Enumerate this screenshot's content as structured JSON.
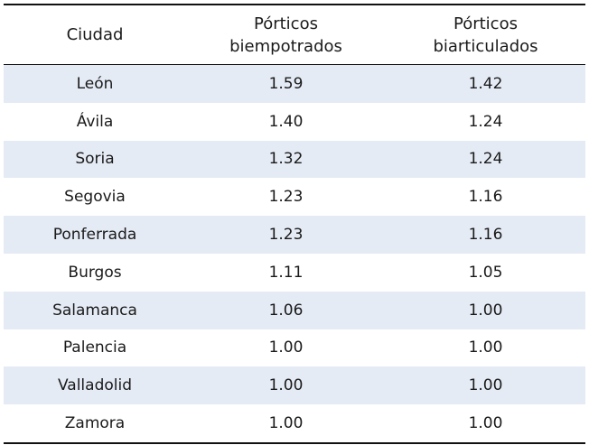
{
  "table": {
    "header": {
      "city": "Ciudad",
      "col2": [
        "Pórticos",
        "biempotrados"
      ],
      "col3": [
        "Pórticos",
        "biarticulados"
      ]
    },
    "rows": [
      {
        "city": "León",
        "biempotrados": "1.59",
        "biarticulados": "1.42"
      },
      {
        "city": "Ávila",
        "biempotrados": "1.40",
        "biarticulados": "1.24"
      },
      {
        "city": "Soria",
        "biempotrados": "1.32",
        "biarticulados": "1.24"
      },
      {
        "city": "Segovia",
        "biempotrados": "1.23",
        "biarticulados": "1.16"
      },
      {
        "city": "Ponferrada",
        "biempotrados": "1.23",
        "biarticulados": "1.16"
      },
      {
        "city": "Burgos",
        "biempotrados": "1.11",
        "biarticulados": "1.05"
      },
      {
        "city": "Salamanca",
        "biempotrados": "1.06",
        "biarticulados": "1.00"
      },
      {
        "city": "Palencia",
        "biempotrados": "1.00",
        "biarticulados": "1.00"
      },
      {
        "city": "Valladolid",
        "biempotrados": "1.00",
        "biarticulados": "1.00"
      },
      {
        "city": "Zamora",
        "biempotrados": "1.00",
        "biarticulados": "1.00"
      }
    ],
    "colors": {
      "stripe": "#e5ebf5",
      "rule": "#111111",
      "text": "#1a1a1a"
    }
  }
}
